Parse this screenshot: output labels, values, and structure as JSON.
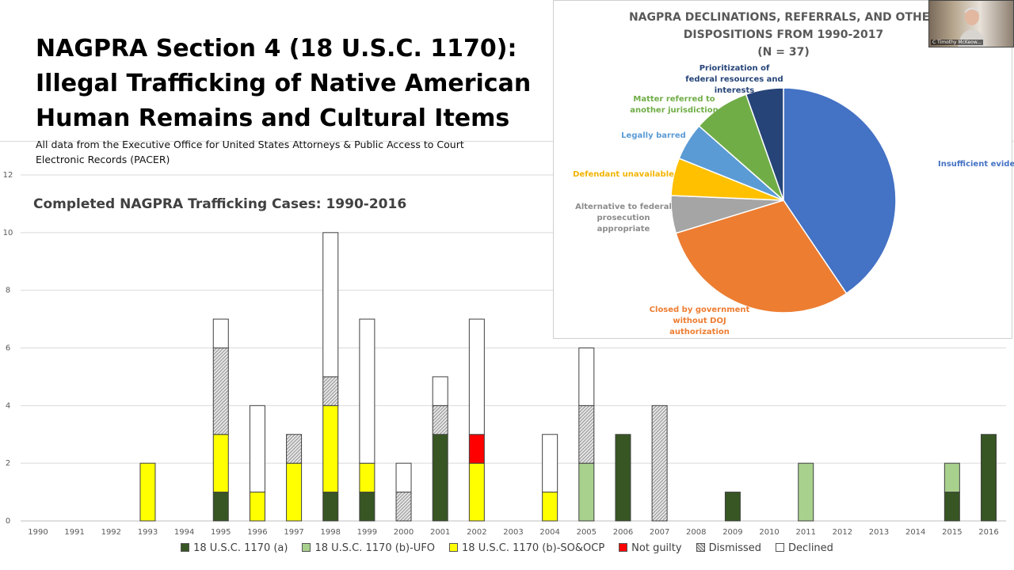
{
  "slide": {
    "title_lines": [
      "NAGPRA Section 4 (18 U.S.C. 1170):",
      "Illegal Trafficking of Native American",
      "Human Remains and Cultural Items"
    ],
    "source_lines": [
      "All data from the Executive Office for United States Attorneys & Public Access to Court",
      "Electronic Records  (PACER)"
    ]
  },
  "webcam": {
    "name": "C Timothy McKeow..."
  },
  "colors": {
    "usc_a": "#375623",
    "usc_b_ufo": "#a9d18e",
    "usc_b_so": "#ffff00",
    "not_guilty": "#ff0000",
    "dismissed": "#bfbfbf",
    "declined": "#ffffff"
  },
  "chart_data": [
    {
      "type": "bar",
      "stacked": true,
      "title": "Completed NAGPRA Trafficking Cases: 1990-2016",
      "xlabel": "",
      "ylabel": "",
      "ylim": [
        0,
        12
      ],
      "yticks": [
        0,
        2,
        4,
        6,
        8,
        10,
        12
      ],
      "grid": true,
      "legend": "bottom",
      "categories": [
        "1990",
        "1991",
        "1992",
        "1993",
        "1994",
        "1995",
        "1996",
        "1997",
        "1998",
        "1999",
        "2000",
        "2001",
        "2002",
        "2003",
        "2004",
        "2005",
        "2006",
        "2007",
        "2008",
        "2009",
        "2010",
        "2011",
        "2012",
        "2013",
        "2014",
        "2015",
        "2016"
      ],
      "series": [
        {
          "name": "18 U.S.C. 1170 (a)",
          "color_key": "usc_a",
          "values": [
            0,
            0,
            0,
            0,
            0,
            1,
            0,
            0,
            1,
            1,
            0,
            3,
            0,
            0,
            0,
            0,
            3,
            0,
            0,
            1,
            0,
            0,
            0,
            0,
            0,
            1,
            3
          ]
        },
        {
          "name": "18 U.S.C. 1170 (b)-UFO",
          "color_key": "usc_b_ufo",
          "values": [
            0,
            0,
            0,
            0,
            0,
            0,
            0,
            0,
            0,
            0,
            0,
            0,
            0,
            0,
            0,
            2,
            0,
            0,
            0,
            0,
            0,
            2,
            0,
            0,
            0,
            1,
            0
          ]
        },
        {
          "name": "18 U.S.C. 1170 (b)-SO&OCP",
          "color_key": "usc_b_so",
          "values": [
            0,
            0,
            0,
            2,
            0,
            2,
            1,
            2,
            3,
            1,
            0,
            0,
            2,
            0,
            1,
            0,
            0,
            0,
            0,
            0,
            0,
            0,
            0,
            0,
            0,
            0,
            0
          ]
        },
        {
          "name": "Not guilty",
          "color_key": "not_guilty",
          "values": [
            0,
            0,
            0,
            0,
            0,
            0,
            0,
            0,
            0,
            0,
            0,
            0,
            1,
            0,
            0,
            0,
            0,
            0,
            0,
            0,
            0,
            0,
            0,
            0,
            0,
            0,
            0
          ]
        },
        {
          "name": "Dismissed",
          "color_key": "dismissed",
          "values": [
            0,
            0,
            0,
            0,
            0,
            3,
            0,
            1,
            1,
            0,
            1,
            1,
            0,
            0,
            0,
            2,
            0,
            4,
            0,
            0,
            0,
            0,
            0,
            0,
            0,
            0,
            0
          ]
        },
        {
          "name": "Declined",
          "color_key": "declined",
          "values": [
            0,
            0,
            0,
            0,
            0,
            1,
            3,
            0,
            5,
            5,
            1,
            1,
            4,
            0,
            2,
            2,
            0,
            0,
            0,
            0,
            0,
            0,
            0,
            0,
            0,
            0,
            0
          ]
        }
      ]
    },
    {
      "type": "pie",
      "title": "NAGPRA DECLINATIONS, REFERRALS, AND OTHER DISPOSITIONS FROM 1990-2017",
      "title_lines": [
        "NAGPRA DECLINATIONS, REFERRALS, AND OTHER",
        "DISPOSITIONS FROM 1990-2017",
        "(N = 37)"
      ],
      "n_label": "(N = 37)",
      "legend": "none",
      "slices": [
        {
          "label": "Insufficient evidence",
          "label_lines": [
            "Insufficient evidence"
          ],
          "value": 15,
          "color": "#4472c4"
        },
        {
          "label": "Closed by government without DOJ authorization",
          "label_lines": [
            "Closed by government",
            "without DOJ",
            "authorization"
          ],
          "value": 11,
          "color": "#ed7d31"
        },
        {
          "label": "Alternative to federal prosecution appropriate",
          "label_lines": [
            "Alternative to federal",
            "prosecution",
            "appropriate"
          ],
          "value": 2,
          "color": "#a5a5a5"
        },
        {
          "label": "Defendant unavailable",
          "label_lines": [
            "Defendant unavailable"
          ],
          "value": 2,
          "color": "#ffc000"
        },
        {
          "label": "Legally barred",
          "label_lines": [
            "Legally barred"
          ],
          "value": 2,
          "color": "#5b9bd5"
        },
        {
          "label": "Matter referred to another jurisdiction",
          "label_lines": [
            "Matter referred to",
            "another jurisdiction"
          ],
          "value": 3,
          "color": "#70ad47"
        },
        {
          "label": "Prioritization of federal resources and interests",
          "label_lines": [
            "Prioritization  of",
            "federal resources and",
            "interests"
          ],
          "value": 2,
          "color": "#264478"
        }
      ]
    }
  ]
}
